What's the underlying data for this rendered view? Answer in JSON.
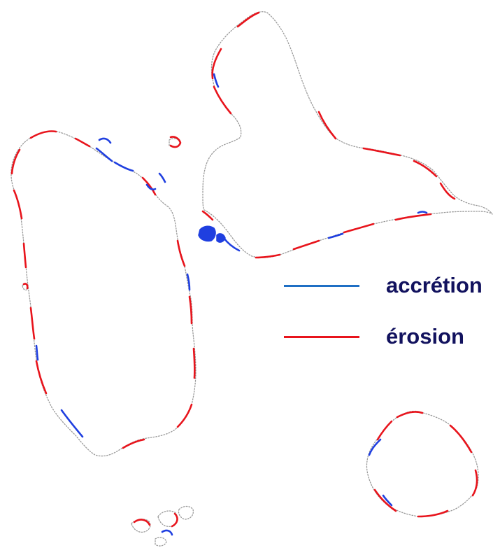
{
  "legend": {
    "items": [
      {
        "label": "accrétion",
        "color": "#1f6fc4"
      },
      {
        "label": "érosion",
        "color": "#e8141c"
      }
    ]
  },
  "colors": {
    "coastline": "#9a9a9a",
    "accretion": "#1f3fe0",
    "erosion": "#e8141c"
  }
}
